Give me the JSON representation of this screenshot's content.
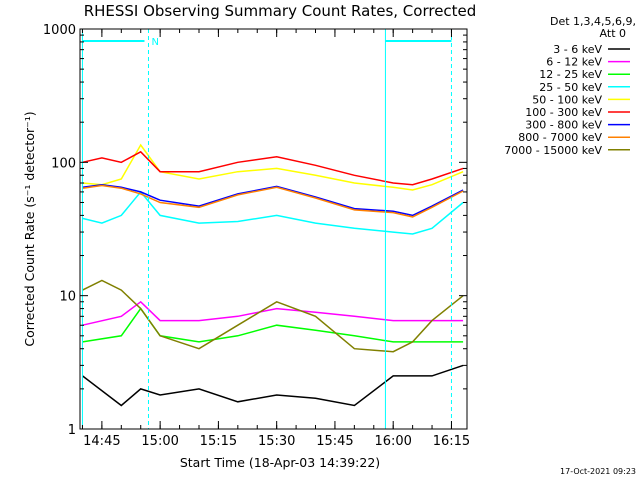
{
  "chart_data": {
    "type": "line",
    "title": "RHESSI Observing Summary Count Rates, Corrected",
    "xlabel": "Start Time (18-Apr-03 14:39:22)",
    "ylabel": "Corrected Count Rate (s⁻¹ detector⁻¹)",
    "yscale": "log",
    "ylim": [
      1,
      1000
    ],
    "xlim": [
      "14:39:22",
      "16:19:00"
    ],
    "x_tick_labels": [
      "14:45",
      "15:00",
      "15:15",
      "15:30",
      "15:45",
      "16:00",
      "16:15"
    ],
    "y_tick_labels": [
      "1",
      "10",
      "100",
      "1000"
    ],
    "legend_header": [
      "Det 1,3,4,5,6,9,",
      "Att 0"
    ],
    "legend_position": "right",
    "marker_label": "N",
    "footer_date": "17-Oct-2021 09:23",
    "series": [
      {
        "name": "3 - 6 keV",
        "color": "#000000",
        "x": [
          "14:40",
          "14:50",
          "14:55",
          "15:00",
          "15:10",
          "15:20",
          "15:30",
          "15:40",
          "15:50",
          "16:00",
          "16:10",
          "16:18"
        ],
        "y": [
          2.5,
          1.5,
          2,
          1.8,
          2,
          1.6,
          1.8,
          1.7,
          1.5,
          2.5,
          2.5,
          3
        ]
      },
      {
        "name": "6 - 12 keV",
        "color": "#ff00ff",
        "x": [
          "14:40",
          "14:50",
          "14:55",
          "15:00",
          "15:10",
          "15:20",
          "15:30",
          "15:40",
          "15:50",
          "16:00",
          "16:10",
          "16:18"
        ],
        "y": [
          6,
          7,
          9,
          6.5,
          6.5,
          7,
          8,
          7.5,
          7,
          6.5,
          6.5,
          6.5
        ]
      },
      {
        "name": "12 - 25 keV",
        "color": "#00ff00",
        "x": [
          "14:40",
          "14:50",
          "14:55",
          "15:00",
          "15:10",
          "15:20",
          "15:30",
          "15:40",
          "15:50",
          "16:00",
          "16:10",
          "16:18"
        ],
        "y": [
          4.5,
          5,
          8,
          5,
          4.5,
          5,
          6,
          5.5,
          5,
          4.5,
          4.5,
          4.5
        ]
      },
      {
        "name": "25 - 50 keV",
        "color": "#00ffff",
        "x": [
          "14:40",
          "14:45",
          "14:50",
          "14:55",
          "15:00",
          "15:10",
          "15:20",
          "15:30",
          "15:40",
          "15:50",
          "16:00",
          "16:05",
          "16:10",
          "16:18"
        ],
        "y": [
          38,
          35,
          40,
          60,
          40,
          35,
          36,
          40,
          35,
          32,
          30,
          29,
          32,
          50
        ]
      },
      {
        "name": "50 - 100 keV",
        "color": "#ffff00",
        "x": [
          "14:40",
          "14:45",
          "14:50",
          "14:55",
          "15:00",
          "15:10",
          "15:20",
          "15:30",
          "15:40",
          "15:50",
          "16:00",
          "16:05",
          "16:10",
          "16:18"
        ],
        "y": [
          70,
          68,
          75,
          135,
          85,
          75,
          85,
          90,
          80,
          70,
          65,
          62,
          68,
          85
        ]
      },
      {
        "name": "100 - 300 keV",
        "color": "#ff0000",
        "x": [
          "14:40",
          "14:45",
          "14:50",
          "14:55",
          "15:00",
          "15:10",
          "15:20",
          "15:30",
          "15:40",
          "15:50",
          "16:00",
          "16:05",
          "16:10",
          "16:18"
        ],
        "y": [
          100,
          108,
          100,
          120,
          85,
          85,
          100,
          110,
          95,
          80,
          70,
          68,
          75,
          90
        ]
      },
      {
        "name": "300 - 800 keV",
        "color": "#0000ff",
        "x": [
          "14:40",
          "14:45",
          "14:50",
          "14:55",
          "15:00",
          "15:10",
          "15:20",
          "15:30",
          "15:40",
          "15:50",
          "16:00",
          "16:05",
          "16:10",
          "16:18"
        ],
        "y": [
          65,
          68,
          65,
          60,
          52,
          47,
          58,
          66,
          55,
          45,
          43,
          40,
          47,
          62
        ]
      },
      {
        "name": "800 - 7000 keV",
        "color": "#ff8000",
        "x": [
          "14:40",
          "14:45",
          "14:50",
          "14:55",
          "15:00",
          "15:10",
          "15:20",
          "15:30",
          "15:40",
          "15:50",
          "16:00",
          "16:05",
          "16:10",
          "16:18"
        ],
        "y": [
          64,
          67,
          64,
          58,
          50,
          46,
          57,
          65,
          54,
          44,
          42,
          39,
          46,
          61
        ]
      },
      {
        "name": "7000 - 15000 keV",
        "color": "#808000",
        "x": [
          "14:40",
          "14:45",
          "14:50",
          "14:55",
          "15:00",
          "15:10",
          "15:20",
          "15:30",
          "15:40",
          "15:50",
          "16:00",
          "16:05",
          "16:10",
          "16:18"
        ],
        "y": [
          11,
          13,
          11,
          8,
          5,
          4,
          6,
          9,
          7,
          4,
          3.8,
          4.5,
          6.5,
          10
        ]
      }
    ]
  }
}
